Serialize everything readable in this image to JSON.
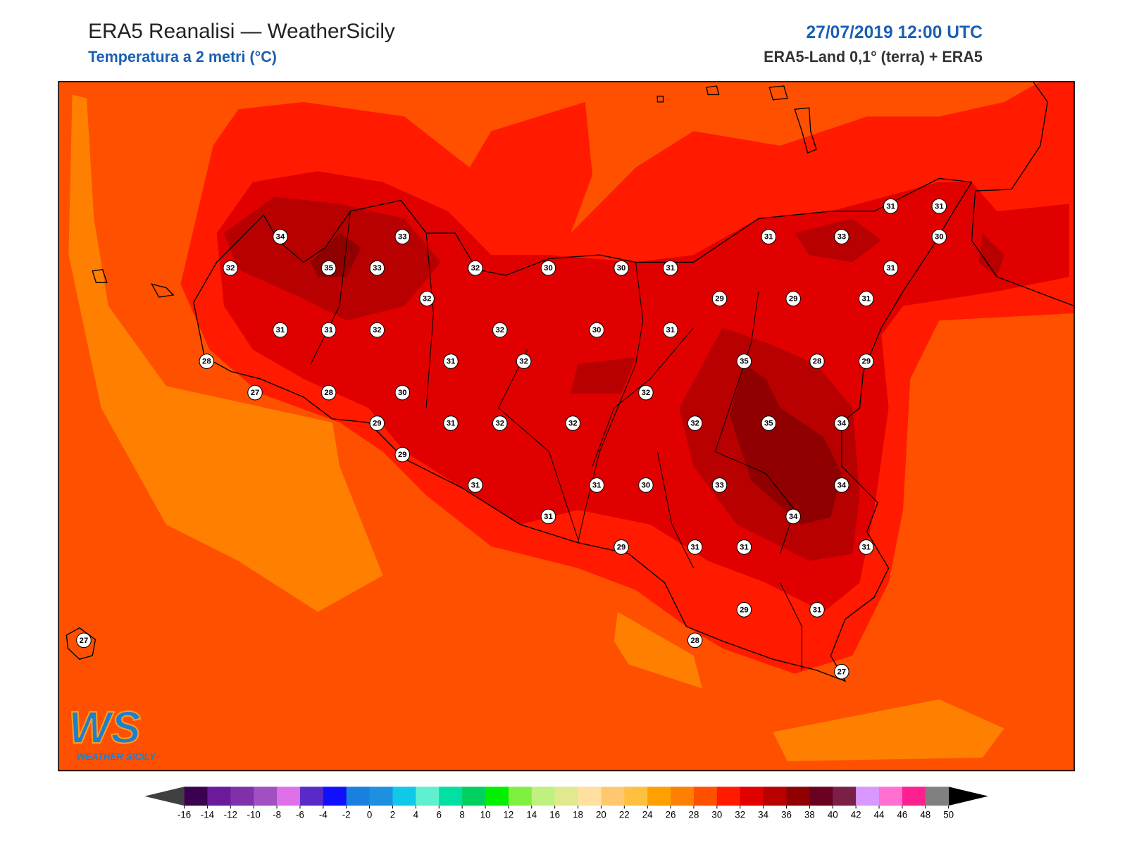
{
  "header": {
    "title": "ERA5 Reanalisi — WeatherSicily",
    "subtitle": "Temperatura a 2 metri (°C)",
    "datetime": "27/07/2019 12:00 UTC",
    "source": "ERA5-Land 0,1° (terra) + ERA5"
  },
  "map": {
    "stations": [
      31,
      31,
      34,
      33,
      31,
      33,
      30,
      32,
      35,
      33,
      32,
      30,
      30,
      31,
      31,
      32,
      29,
      29,
      31,
      31,
      31,
      32,
      32,
      30,
      31,
      28,
      31,
      32,
      35,
      28,
      29,
      27,
      28,
      30,
      32,
      29,
      31,
      32,
      32,
      32,
      35,
      34,
      29,
      31,
      31,
      30,
      33,
      34,
      31,
      34,
      29,
      31,
      31,
      31,
      29,
      31,
      27,
      28,
      27
    ]
  },
  "colorbar": {
    "ticks": [
      -16,
      -14,
      -12,
      -10,
      -8,
      -6,
      -4,
      -2,
      0,
      2,
      4,
      6,
      8,
      10,
      12,
      14,
      16,
      18,
      20,
      22,
      24,
      26,
      28,
      30,
      32,
      34,
      36,
      38,
      40,
      42,
      44,
      46,
      48,
      50
    ],
    "colors": [
      "#3b0050",
      "#6a1a9a",
      "#8030a8",
      "#a050c0",
      "#e070e8",
      "#5a2ac8",
      "#1010ff",
      "#1a80e0",
      "#1e90e0",
      "#10c8e8",
      "#60f0d0",
      "#00e0a0",
      "#00d060",
      "#00f000",
      "#80f040",
      "#c0f080",
      "#e0e890",
      "#ffe0a0",
      "#ffc870",
      "#ffc040",
      "#ffa000",
      "#ff8000",
      "#ff5000",
      "#ff1a00",
      "#e00000",
      "#b80000",
      "#900000",
      "#6a0020",
      "#7a2048",
      "#d898ff",
      "#ff70d0",
      "#ff2090",
      "#808080"
    ],
    "under_color": "#404040",
    "over_color": "#000000"
  },
  "logo": {
    "mark": "WS",
    "name": "WEATHER SICILY"
  }
}
